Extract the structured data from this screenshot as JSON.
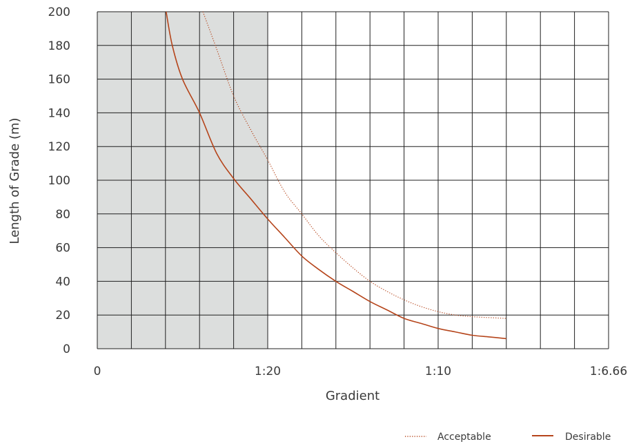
{
  "chart_data": {
    "type": "line",
    "title": "",
    "xlabel": "Gradient",
    "ylabel": "Length of Grade (m)",
    "ylim": [
      0,
      200
    ],
    "y_ticks": [
      0,
      20,
      40,
      60,
      80,
      100,
      120,
      140,
      160,
      180,
      200
    ],
    "x_tick_labels": [
      "0",
      "1:20",
      "1:10",
      "1:6.66"
    ],
    "x_tick_values": [
      0,
      0.05,
      0.1,
      0.15
    ],
    "xlim": [
      0,
      0.15
    ],
    "grid": true,
    "shaded_region": {
      "from": 0,
      "to": 0.05,
      "color": "#dcdedd"
    },
    "legend_position": "bottom-right",
    "series": [
      {
        "name": "Acceptable",
        "style": "dotted",
        "color": "#b5441a",
        "points": [
          [
            0.031,
            200
          ],
          [
            0.035,
            178
          ],
          [
            0.04,
            150
          ],
          [
            0.045,
            130
          ],
          [
            0.05,
            112
          ],
          [
            0.055,
            93
          ],
          [
            0.06,
            80
          ],
          [
            0.065,
            67
          ],
          [
            0.07,
            57
          ],
          [
            0.075,
            48
          ],
          [
            0.08,
            40
          ],
          [
            0.085,
            34
          ],
          [
            0.09,
            29
          ],
          [
            0.095,
            25
          ],
          [
            0.1,
            22
          ],
          [
            0.105,
            20
          ],
          [
            0.11,
            19
          ],
          [
            0.12,
            18
          ]
        ]
      },
      {
        "name": "Desirable",
        "style": "solid",
        "color": "#b5441a",
        "points": [
          [
            0.0202,
            200
          ],
          [
            0.022,
            180
          ],
          [
            0.025,
            160
          ],
          [
            0.03,
            140
          ],
          [
            0.035,
            116
          ],
          [
            0.04,
            101
          ],
          [
            0.045,
            89
          ],
          [
            0.05,
            77
          ],
          [
            0.055,
            66
          ],
          [
            0.06,
            55
          ],
          [
            0.065,
            47
          ],
          [
            0.07,
            40
          ],
          [
            0.075,
            34
          ],
          [
            0.08,
            28
          ],
          [
            0.085,
            23
          ],
          [
            0.09,
            18
          ],
          [
            0.095,
            15
          ],
          [
            0.1,
            12
          ],
          [
            0.105,
            10
          ],
          [
            0.11,
            8
          ],
          [
            0.115,
            7
          ],
          [
            0.12,
            6
          ]
        ]
      }
    ]
  }
}
